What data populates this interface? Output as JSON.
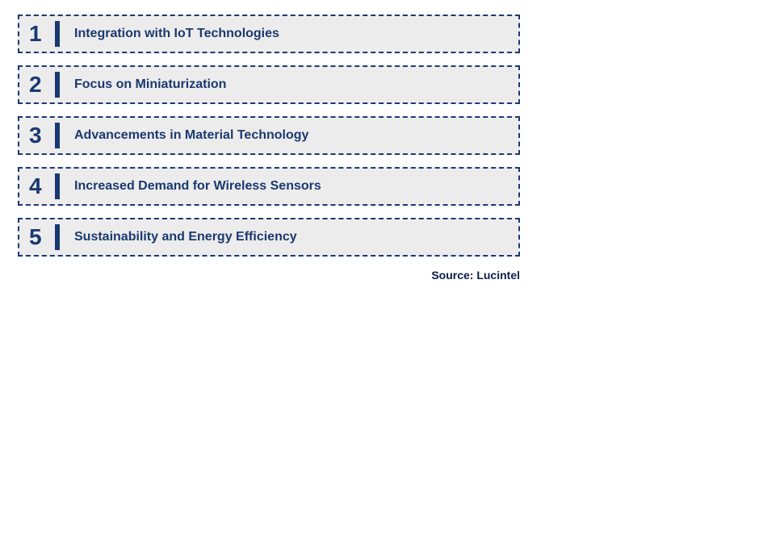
{
  "infographic": {
    "type": "numbered_list",
    "background_color": "#ffffff",
    "item_bg_color": "#edecec",
    "border_color": "#1a3970",
    "border_style": "dashed",
    "border_width": 2,
    "text_color": "#1a3970",
    "number_fontsize": 28,
    "label_fontsize": 16,
    "divider_color": "#1a3970",
    "divider_width": 6,
    "divider_height": 32,
    "item_height": 48,
    "item_gap": 15,
    "container_width": 622,
    "items": [
      {
        "number": "1",
        "label": "Integration with IoT Technologies"
      },
      {
        "number": "2",
        "label": "Focus on Miniaturization"
      },
      {
        "number": "3",
        "label": "Advancements in Material Technology"
      },
      {
        "number": "4",
        "label": "Increased Demand for Wireless Sensors"
      },
      {
        "number": "5",
        "label": "Sustainability and Energy Efficiency"
      }
    ],
    "source": "Source: Lucintel",
    "source_color": "#0a1f44",
    "source_fontsize": 14
  }
}
